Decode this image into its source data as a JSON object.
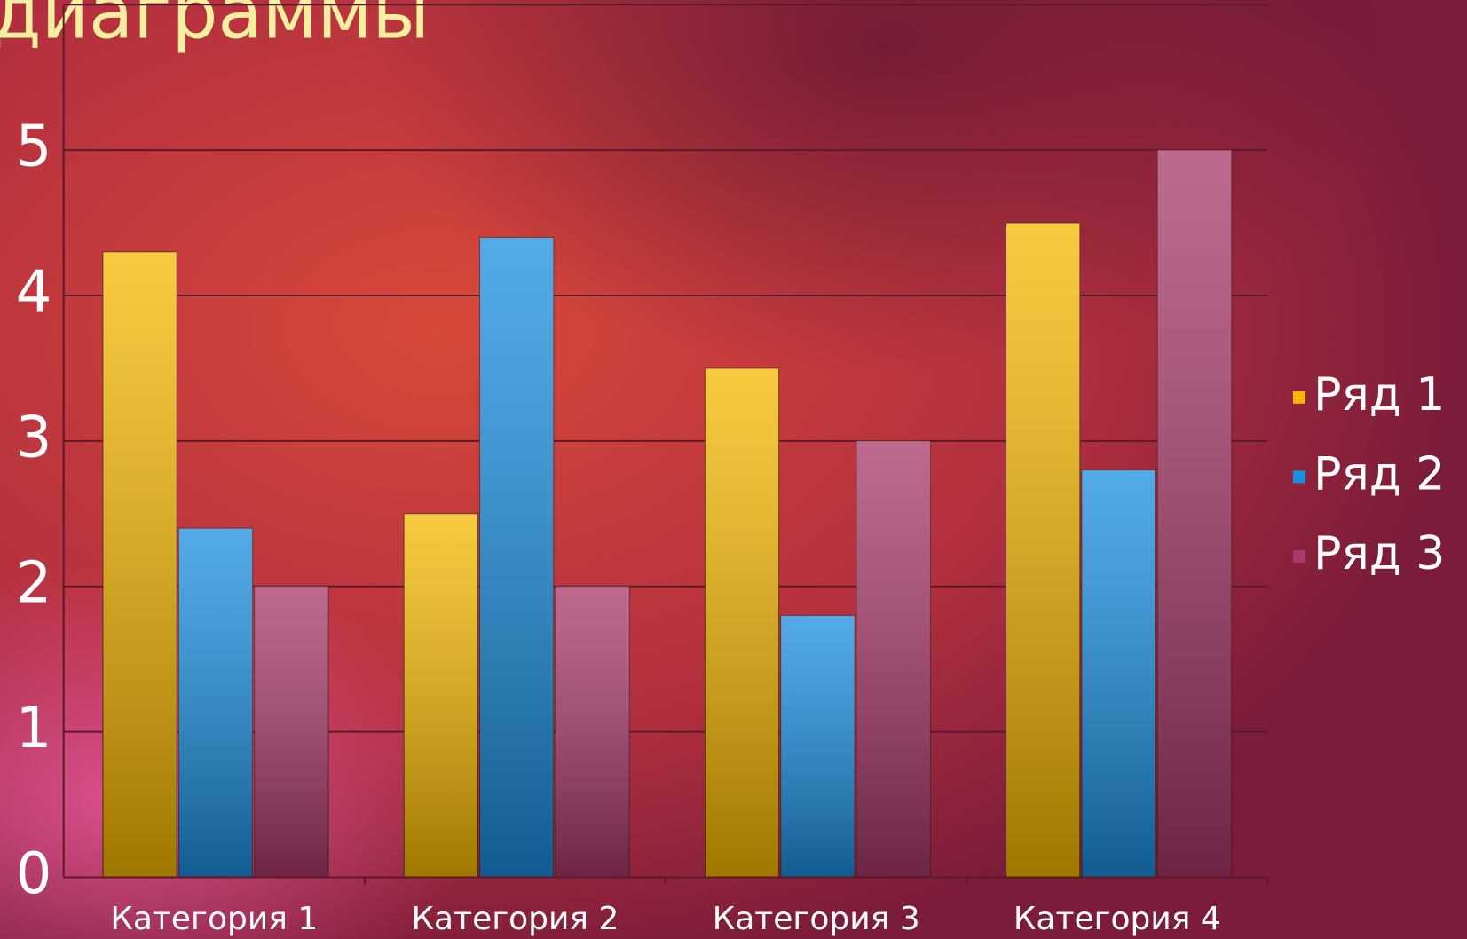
{
  "chart_data": {
    "type": "bar",
    "title": "диаграммы",
    "categories": [
      "Категория 1",
      "Категория 2",
      "Категория 3",
      "Категория 4"
    ],
    "series": [
      {
        "name": "Ряд 1",
        "color": "#f5b800",
        "values": [
          4.3,
          2.5,
          3.5,
          4.5
        ]
      },
      {
        "name": "Ряд 2",
        "color": "#1a8ee0",
        "values": [
          2.4,
          4.4,
          1.8,
          2.8
        ]
      },
      {
        "name": "Ряд 3",
        "color": "#a8386a",
        "values": [
          2,
          2,
          3,
          5
        ]
      }
    ],
    "ylim": [
      0,
      6
    ],
    "yticks": [
      0,
      1,
      2,
      3,
      4,
      5
    ],
    "grid": true,
    "legend": "right"
  }
}
